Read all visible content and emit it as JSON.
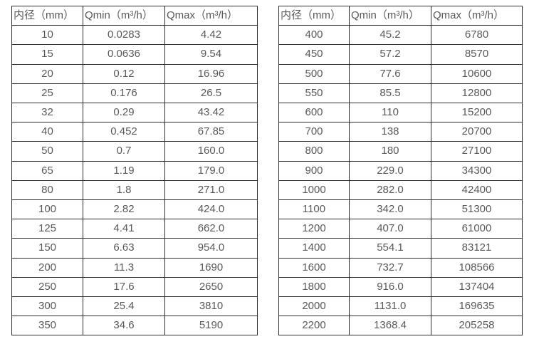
{
  "page": {
    "background_color": "#ffffff",
    "border_color": "#2e2e2e",
    "text_color": "#595959"
  },
  "tables": [
    {
      "name": "flow-table-small-diameters",
      "headers": [
        "内径（mm）",
        "Qmin（m³/h）",
        "Qmax（m³/h）"
      ],
      "rows": [
        [
          "10",
          "0.0283",
          "4.42"
        ],
        [
          "15",
          "0.0636",
          "9.54"
        ],
        [
          "20",
          "0.12",
          "16.96"
        ],
        [
          "25",
          "0.176",
          "26.5"
        ],
        [
          "32",
          "0.29",
          "43.42"
        ],
        [
          "40",
          "0.452",
          "67.85"
        ],
        [
          "50",
          "0.7",
          "160.0"
        ],
        [
          "65",
          "1.19",
          "179.0"
        ],
        [
          "80",
          "1.8",
          "271.0"
        ],
        [
          "100",
          "2.82",
          "424.0"
        ],
        [
          "125",
          "4.41",
          "662.0"
        ],
        [
          "150",
          "6.63",
          "954.0"
        ],
        [
          "200",
          "11.3",
          "1690"
        ],
        [
          "250",
          "17.6",
          "2650"
        ],
        [
          "300",
          "25.4",
          "3810"
        ],
        [
          "350",
          "34.6",
          "5190"
        ]
      ]
    },
    {
      "name": "flow-table-large-diameters",
      "headers": [
        "内径（mm）",
        "Qmin（m³/h）",
        "Qmax（m³/h）"
      ],
      "rows": [
        [
          "400",
          "45.2",
          "6780"
        ],
        [
          "450",
          "57.2",
          "8570"
        ],
        [
          "500",
          "77.6",
          "10600"
        ],
        [
          "550",
          "85.5",
          "12800"
        ],
        [
          "600",
          "110",
          "15200"
        ],
        [
          "700",
          "138",
          "20700"
        ],
        [
          "800",
          "180",
          "27100"
        ],
        [
          "900",
          "229.0",
          "34300"
        ],
        [
          "1000",
          "282.0",
          "42400"
        ],
        [
          "1100",
          "342.0",
          "51300"
        ],
        [
          "1200",
          "407.0",
          "61000"
        ],
        [
          "1400",
          "554.1",
          "83121"
        ],
        [
          "1600",
          "732.7",
          "108566"
        ],
        [
          "1800",
          "916.0",
          "137404"
        ],
        [
          "2000",
          "1131.0",
          "169635"
        ],
        [
          "2200",
          "1368.4",
          "205258"
        ]
      ]
    }
  ]
}
